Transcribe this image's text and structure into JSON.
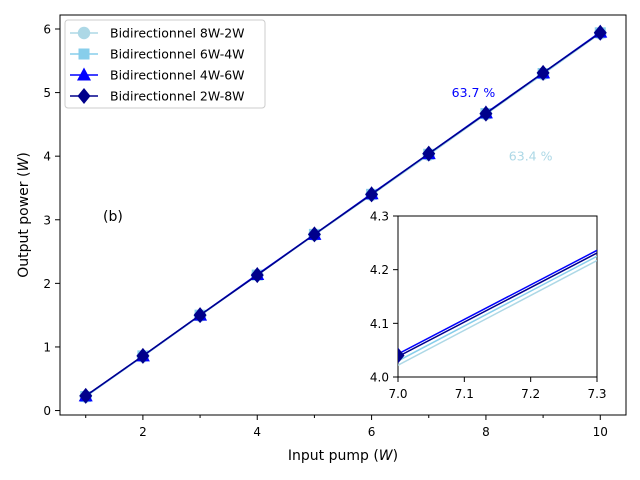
{
  "chart_data": [
    {
      "type": "line",
      "panel_label": "(b)",
      "xlabel": "Input pump",
      "xlabel_unit": "W",
      "ylabel": "Output power",
      "ylabel_unit": "W",
      "xlim": [
        0.55,
        10.45
      ],
      "ylim": [
        -0.07,
        6.22
      ],
      "xticks": [
        2,
        4,
        6,
        8,
        10
      ],
      "yticks": [
        0,
        1,
        2,
        3,
        4,
        5,
        6
      ],
      "x": [
        1,
        2,
        3,
        4,
        5,
        6,
        7,
        8,
        9,
        10
      ],
      "series": [
        {
          "name": "Bidirectionnel 8W-2W",
          "color": "#add8e6",
          "marker": "circle",
          "values": [
            0.22,
            0.85,
            1.49,
            2.13,
            2.76,
            3.39,
            4.02,
            4.66,
            5.29,
            5.93
          ]
        },
        {
          "name": "Bidirectionnel 6W-4W",
          "color": "#87ceeb",
          "marker": "square",
          "values": [
            0.22,
            0.86,
            1.5,
            2.13,
            2.77,
            3.4,
            4.03,
            4.67,
            5.3,
            5.94
          ]
        },
        {
          "name": "Bidirectionnel 4W-6W",
          "color": "#0000ff",
          "marker": "triangle",
          "values": [
            0.23,
            0.86,
            1.5,
            2.14,
            2.77,
            3.41,
            4.04,
            4.68,
            5.31,
            5.95
          ]
        },
        {
          "name": "Bidirectionnel 2W-8W",
          "color": "#00008b",
          "marker": "diamond",
          "values": [
            0.23,
            0.86,
            1.5,
            2.13,
            2.77,
            3.4,
            4.04,
            4.67,
            5.31,
            5.94
          ]
        }
      ],
      "annotations": [
        {
          "text": "63.7 %",
          "x": 7.4,
          "y": 5.0,
          "color": "#0000ff"
        },
        {
          "text": "63.4 %",
          "x": 8.4,
          "y": 4.0,
          "color": "#add8e6"
        }
      ]
    },
    {
      "type": "line",
      "role": "inset",
      "xlim": [
        7.0,
        7.3
      ],
      "ylim": [
        4.0,
        4.3
      ],
      "xticks": [
        7.0,
        7.1,
        7.2,
        7.3
      ],
      "yticks": [
        4.0,
        4.1,
        4.2,
        4.3
      ],
      "xtick_labels": [
        "7.0",
        "7.1",
        "7.2",
        "7.3"
      ],
      "ytick_labels": [
        "4.0",
        "4.1",
        "4.2",
        "4.3"
      ],
      "series": [
        {
          "name": "Bidirectionnel 8W-2W",
          "color": "#add8e6",
          "x": [
            7.0,
            7.3
          ],
          "values": [
            4.022,
            4.217
          ]
        },
        {
          "name": "Bidirectionnel 6W-4W",
          "color": "#87ceeb",
          "x": [
            7.0,
            7.3
          ],
          "values": [
            4.03,
            4.225
          ]
        },
        {
          "name": "Bidirectionnel 4W-6W",
          "color": "#0000ff",
          "x": [
            7.0,
            7.3
          ],
          "values": [
            4.043,
            4.236
          ]
        },
        {
          "name": "Bidirectionnel 2W-8W",
          "color": "#00008b",
          "x": [
            7.0,
            7.3
          ],
          "values": [
            4.038,
            4.231
          ]
        }
      ]
    }
  ]
}
